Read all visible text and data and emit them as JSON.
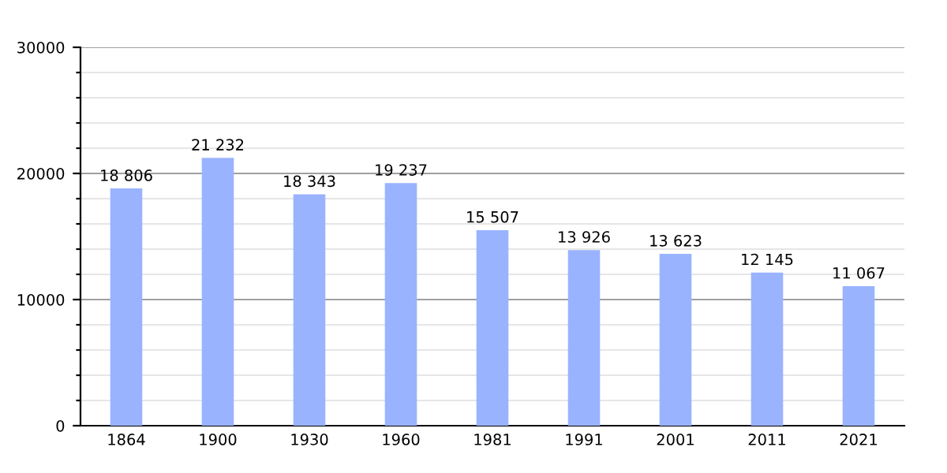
{
  "chart_data": {
    "type": "bar",
    "categories": [
      "1864",
      "1900",
      "1930",
      "1960",
      "1981",
      "1991",
      "2001",
      "2011",
      "2021"
    ],
    "values": [
      18806,
      21232,
      18343,
      19237,
      15507,
      13926,
      13623,
      12145,
      11067
    ],
    "value_labels": [
      "18 806",
      "21 232",
      "18 343",
      "19 237",
      "15 507",
      "13 926",
      "13 623",
      "12 145",
      "11 067"
    ],
    "color": "#99b3ff",
    "ylim": [
      0,
      30000
    ],
    "yticks": [
      0,
      {
        "value": 2000,
        "label": null
      },
      {
        "value": 4000,
        "label": null
      },
      {
        "value": 6000,
        "label": null
      },
      {
        "value": 8000,
        "label": null
      },
      10000,
      {
        "value": 12000,
        "label": null
      },
      {
        "value": 14000,
        "label": null
      },
      {
        "value": 16000,
        "label": null
      },
      {
        "value": 18000,
        "label": null
      },
      20000,
      {
        "value": 22000,
        "label": null
      },
      {
        "value": 24000,
        "label": null
      },
      {
        "value": 26000,
        "label": null
      },
      {
        "value": 28000,
        "label": null
      },
      30000
    ],
    "grid": "y"
  }
}
